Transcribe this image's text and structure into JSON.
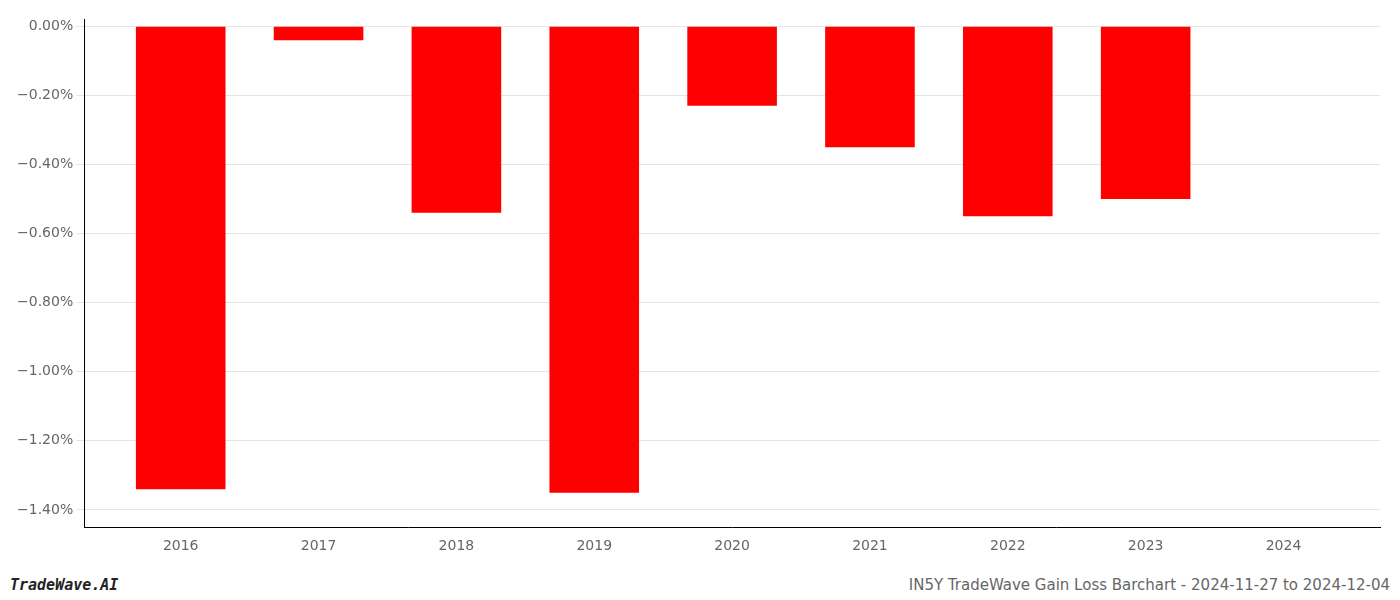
{
  "chart_data": {
    "type": "bar",
    "x": [
      2016,
      2017,
      2018,
      2019,
      2020,
      2021,
      2022,
      2023
    ],
    "values": [
      -1.34,
      -0.04,
      -0.54,
      -1.35,
      -0.23,
      -0.35,
      -0.55,
      -0.5
    ],
    "color": "#ff0000",
    "xlim": [
      2015.3,
      2024.7
    ],
    "xticks": [
      2016,
      2017,
      2018,
      2019,
      2020,
      2021,
      2022,
      2023,
      2024
    ],
    "ylim": [
      -1.45,
      0.02
    ],
    "yticks": [
      {
        "value": 0.0,
        "label": "0.00%"
      },
      {
        "value": -0.2,
        "label": "−0.20%"
      },
      {
        "value": -0.4,
        "label": "−0.40%"
      },
      {
        "value": -0.6,
        "label": "−0.60%"
      },
      {
        "value": -0.8,
        "label": "−0.80%"
      },
      {
        "value": -1.0,
        "label": "−1.00%"
      },
      {
        "value": -1.2,
        "label": "−1.20%"
      },
      {
        "value": -1.4,
        "label": "−1.40%"
      }
    ],
    "grid": true,
    "annotations": [
      "TradeWave.AI",
      "IN5Y TradeWave Gain Loss Barchart - 2024-11-27 to 2024-12-04"
    ]
  }
}
